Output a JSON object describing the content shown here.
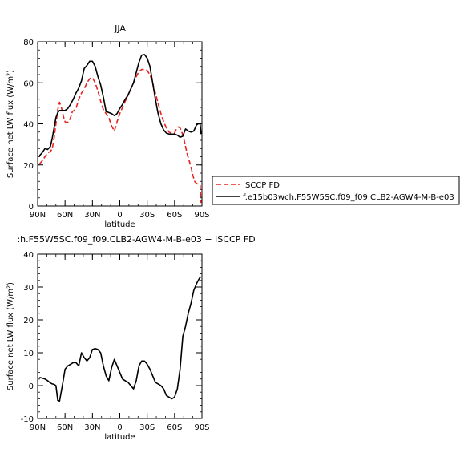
{
  "chart_data": [
    {
      "type": "line",
      "title": "JJA",
      "xlabel": "latitude",
      "ylabel": "Surface net LW flux (W/m²)",
      "xlim": [
        90,
        -90
      ],
      "ylim": [
        0,
        80
      ],
      "x_ticks": [
        90,
        60,
        30,
        0,
        -30,
        -60,
        -90
      ],
      "x_tick_labels": [
        "90N",
        "60N",
        "30N",
        "0",
        "30S",
        "60S",
        "90S"
      ],
      "y_ticks": [
        0,
        20,
        40,
        60,
        80
      ],
      "legend_position": "right",
      "series": [
        {
          "name": "ISCCP FD",
          "color": "#e8231f",
          "dash": "dashed",
          "x": [
            88,
            85,
            82,
            79,
            76,
            74,
            72,
            70,
            68,
            66,
            64,
            62,
            60,
            58,
            56,
            54,
            52,
            50,
            48,
            45,
            42,
            39,
            36,
            33,
            30,
            27,
            24,
            21,
            18,
            15,
            12,
            9,
            6,
            3,
            0,
            -3,
            -6,
            -9,
            -12,
            -15,
            -18,
            -21,
            -24,
            -27,
            -30,
            -33,
            -36,
            -39,
            -42,
            -45,
            -48,
            -51,
            -54,
            -57,
            -60,
            -62,
            -64,
            -66,
            -68,
            -70,
            -72,
            -74,
            -76,
            -78,
            -80,
            -82,
            -84,
            -86,
            -88,
            -89
          ],
          "y": [
            20.5,
            22,
            24,
            26,
            26.5,
            28,
            33,
            40,
            47,
            50.5,
            48,
            44,
            41,
            40.5,
            41,
            43,
            46,
            46.5,
            47.5,
            52,
            55,
            57,
            60,
            62,
            62.5,
            60,
            56,
            51,
            47,
            45,
            43,
            39,
            36.5,
            41,
            45,
            48,
            51,
            54,
            57,
            60,
            63,
            65.5,
            66.5,
            66.5,
            66,
            64,
            60,
            55,
            50,
            45,
            41,
            38,
            36,
            35.3,
            35.5,
            37.5,
            38.5,
            38,
            36,
            33,
            29,
            25,
            22,
            19,
            15,
            12,
            11,
            10.5,
            10,
            1.5
          ]
        },
        {
          "name": "f.e15b03wch.F55W5SC.f09_f09.CLB2-AGW4-M-B-e03",
          "color": "#000000",
          "dash": "solid",
          "x": [
            88,
            85,
            82,
            79,
            76,
            74,
            72,
            70,
            68,
            66,
            63,
            60,
            57,
            54,
            51,
            48,
            45,
            42,
            39,
            36,
            33,
            30,
            27,
            24,
            21,
            18,
            15,
            12,
            9,
            6,
            3,
            0,
            -3,
            -6,
            -9,
            -12,
            -15,
            -18,
            -21,
            -24,
            -27,
            -30,
            -33,
            -36,
            -39,
            -42,
            -45,
            -48,
            -51,
            -54,
            -57,
            -60,
            -63,
            -66,
            -69,
            -72,
            -75,
            -78,
            -81,
            -84,
            -86,
            -88,
            -89
          ],
          "y": [
            24.5,
            26,
            28,
            27.5,
            29,
            33,
            38,
            43,
            45.5,
            46.5,
            46.5,
            46.5,
            47.5,
            49.5,
            52,
            55,
            57.5,
            61,
            67,
            68.5,
            70.5,
            70.5,
            68,
            63,
            59,
            53,
            46,
            45.5,
            45,
            44,
            45,
            47.5,
            49.5,
            52,
            54,
            57,
            60,
            65,
            70,
            73.5,
            73.8,
            72,
            68,
            60,
            52,
            45,
            40,
            37,
            35.5,
            35,
            35,
            35,
            34.5,
            33.5,
            34,
            37.5,
            36.5,
            36,
            36.5,
            39.5,
            40,
            40,
            35
          ]
        }
      ]
    },
    {
      "type": "line",
      "title": ":h.F55W5SC.f09_f09.CLB2-AGW4-M-B-e03 − ISCCP FD",
      "xlabel": "latitude",
      "ylabel": "Surface net LW flux (W/m²)",
      "xlim": [
        90,
        -90
      ],
      "ylim": [
        -10,
        40
      ],
      "x_ticks": [
        90,
        60,
        30,
        0,
        -30,
        -60,
        -90
      ],
      "x_tick_labels": [
        "90N",
        "60N",
        "30N",
        "0",
        "30S",
        "60S",
        "90S"
      ],
      "y_ticks": [
        -10,
        0,
        10,
        20,
        30,
        40
      ],
      "series": [
        {
          "color": "#000000",
          "dash": "solid",
          "x": [
            88,
            85,
            82,
            79,
            76,
            74,
            72,
            70,
            68,
            66,
            63,
            60,
            57,
            54,
            51,
            48,
            45,
            42,
            39,
            36,
            33,
            30,
            27,
            24,
            21,
            18,
            15,
            12,
            9,
            6,
            3,
            0,
            -3,
            -6,
            -9,
            -12,
            -15,
            -18,
            -21,
            -24,
            -27,
            -30,
            -33,
            -36,
            -39,
            -42,
            -45,
            -48,
            -51,
            -54,
            -57,
            -60,
            -63,
            -66,
            -69,
            -72,
            -75,
            -78,
            -81,
            -84,
            -86,
            -88,
            -89
          ],
          "y": [
            2.5,
            2.3,
            2,
            1.5,
            0.8,
            0.5,
            0.4,
            0,
            -4.5,
            -4.7,
            0,
            5,
            6,
            6.5,
            7,
            7,
            6,
            10,
            8.5,
            7.5,
            8.5,
            11,
            11.3,
            11,
            10,
            6,
            3,
            1.5,
            5.5,
            8,
            6,
            4,
            2,
            1.5,
            1,
            0,
            -1,
            1.5,
            6,
            7.5,
            7.5,
            6.5,
            5,
            3,
            1,
            0.5,
            0,
            -1,
            -3,
            -3.5,
            -4,
            -3.5,
            -1,
            5,
            15,
            18,
            22,
            25,
            29,
            31,
            32,
            33,
            33
          ]
        }
      ]
    }
  ]
}
